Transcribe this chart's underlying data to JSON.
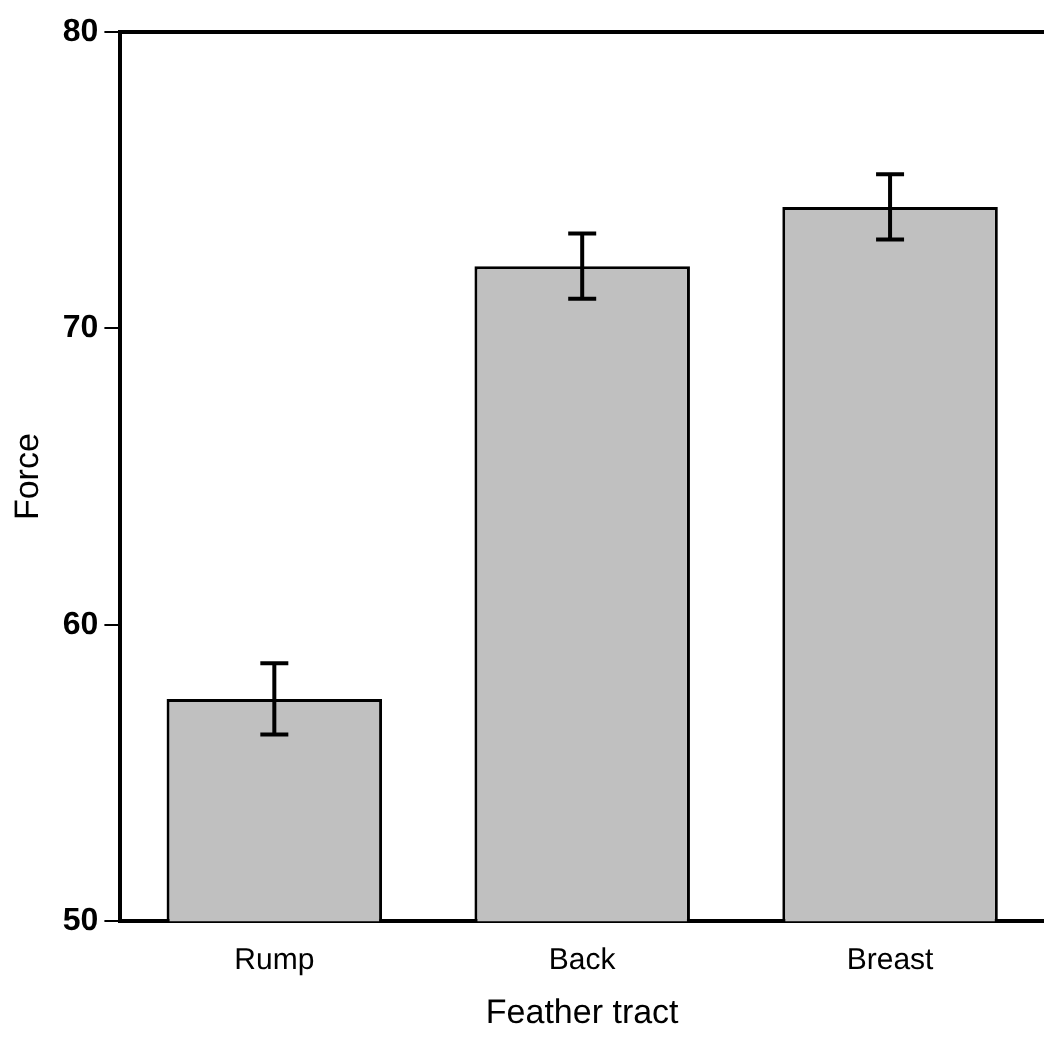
{
  "chart_data": {
    "type": "bar",
    "xlabel": "Feather tract",
    "ylabel": "Force",
    "categories": [
      "Rump",
      "Back",
      "Breast"
    ],
    "values": [
      57.5,
      72.1,
      74.1
    ],
    "errors": [
      1.2,
      1.1,
      1.1
    ],
    "color": "#c0c0c0",
    "ylim": [
      50,
      80
    ],
    "yticks": [
      50,
      60,
      70,
      80
    ],
    "grid": false,
    "legend": false
  }
}
